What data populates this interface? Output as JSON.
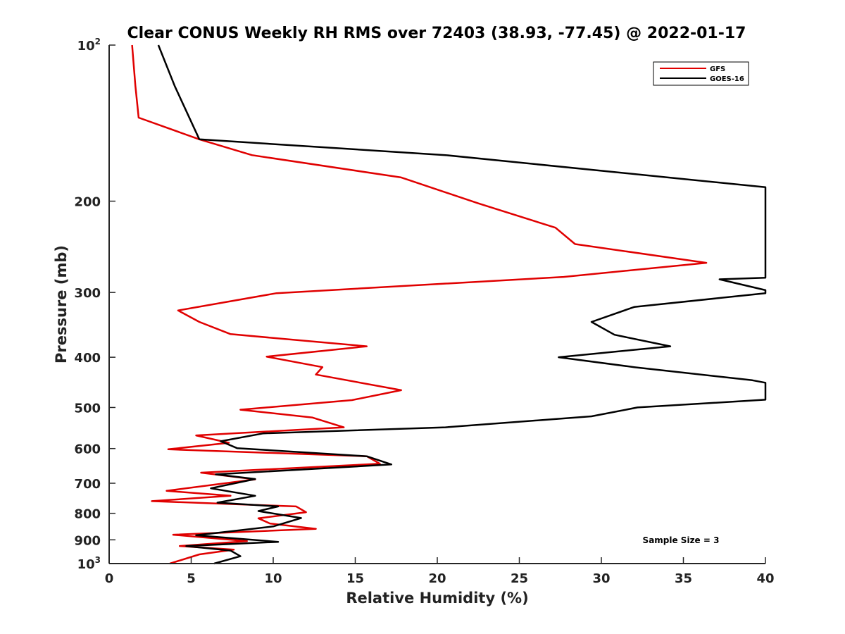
{
  "chart_data": {
    "type": "line",
    "title": "Clear CONUS Weekly RH RMS over 72403 (38.93, -77.45) @ 2022-01-17",
    "xlabel": "Relative Humidity (%)",
    "ylabel": "Pressure (mb)",
    "xlim": [
      0,
      40
    ],
    "ylim": [
      100,
      1000
    ],
    "y_scale": "log",
    "y_reversed": true,
    "x_ticks": [
      0,
      5,
      10,
      15,
      20,
      25,
      30,
      35,
      40
    ],
    "x_tick_labels": [
      "0",
      "5",
      "10",
      "15",
      "20",
      "25",
      "30",
      "35",
      "40"
    ],
    "y_ticks": [
      100,
      200,
      300,
      400,
      500,
      600,
      700,
      800,
      900,
      1000
    ],
    "y_tick_labels": [
      {
        "base": "10",
        "exp": "2"
      },
      {
        "base": "200"
      },
      {
        "base": "300"
      },
      {
        "base": "400"
      },
      {
        "base": "500"
      },
      {
        "base": "600"
      },
      {
        "base": "700"
      },
      {
        "base": "800"
      },
      {
        "base": "900"
      },
      {
        "base": "10",
        "exp": "3"
      }
    ],
    "legend": {
      "position": "top-right"
    },
    "grid": false,
    "annotation": "Sample Size = 3",
    "series": [
      {
        "name": "GFS",
        "color": "#e00000",
        "points": [
          [
            1.4,
            100
          ],
          [
            1.6,
            120
          ],
          [
            1.8,
            138
          ],
          [
            5.5,
            152
          ],
          [
            8.7,
            163
          ],
          [
            17.8,
            180
          ],
          [
            22.5,
            202
          ],
          [
            27.2,
            225
          ],
          [
            28.4,
            242
          ],
          [
            36.4,
            263
          ],
          [
            27.7,
            280
          ],
          [
            10.2,
            301
          ],
          [
            4.2,
            325
          ],
          [
            5.5,
            342
          ],
          [
            7.4,
            361
          ],
          [
            15.7,
            381
          ],
          [
            9.6,
            399
          ],
          [
            13.0,
            418
          ],
          [
            12.6,
            432
          ],
          [
            17.8,
            463
          ],
          [
            14.8,
            484
          ],
          [
            8.0,
            505
          ],
          [
            12.4,
            523
          ],
          [
            14.3,
            546
          ],
          [
            5.3,
            566
          ],
          [
            7.3,
            585
          ],
          [
            3.6,
            602
          ],
          [
            15.7,
            621
          ],
          [
            16.5,
            642
          ],
          [
            5.6,
            668
          ],
          [
            8.9,
            688
          ],
          [
            3.5,
            724
          ],
          [
            7.4,
            740
          ],
          [
            2.6,
            758
          ],
          [
            11.4,
            776
          ],
          [
            12.0,
            796
          ],
          [
            9.1,
            818
          ],
          [
            9.8,
            837
          ],
          [
            12.6,
            857
          ],
          [
            3.9,
            880
          ],
          [
            8.4,
            905
          ],
          [
            4.3,
            925
          ],
          [
            7.6,
            940
          ],
          [
            5.5,
            960
          ],
          [
            3.7,
            1000
          ]
        ]
      },
      {
        "name": "GOES-16",
        "color": "#000000",
        "points": [
          [
            3.0,
            100
          ],
          [
            4.0,
            120
          ],
          [
            5.5,
            152
          ],
          [
            20.5,
            163
          ],
          [
            40.0,
            188
          ],
          [
            40.0,
            281
          ],
          [
            37.2,
            283
          ],
          [
            40.0,
            297
          ],
          [
            40.0,
            301
          ],
          [
            32.0,
            320
          ],
          [
            29.4,
            342
          ],
          [
            30.8,
            362
          ],
          [
            34.2,
            381
          ],
          [
            27.4,
            400
          ],
          [
            32.0,
            418
          ],
          [
            39.2,
            443
          ],
          [
            40.0,
            448
          ],
          [
            40.0,
            483
          ],
          [
            32.2,
            500
          ],
          [
            29.4,
            520
          ],
          [
            20.5,
            546
          ],
          [
            9.4,
            561
          ],
          [
            6.8,
            581
          ],
          [
            7.8,
            599
          ],
          [
            15.7,
            621
          ],
          [
            17.2,
            644
          ],
          [
            6.5,
            673
          ],
          [
            8.9,
            687
          ],
          [
            6.2,
            716
          ],
          [
            8.9,
            740
          ],
          [
            6.6,
            763
          ],
          [
            10.3,
            776
          ],
          [
            9.1,
            792
          ],
          [
            11.7,
            817
          ],
          [
            10.0,
            848
          ],
          [
            5.3,
            882
          ],
          [
            10.3,
            908
          ],
          [
            4.7,
            925
          ],
          [
            7.4,
            944
          ],
          [
            8.0,
            968
          ],
          [
            6.4,
            1000
          ]
        ]
      }
    ]
  }
}
